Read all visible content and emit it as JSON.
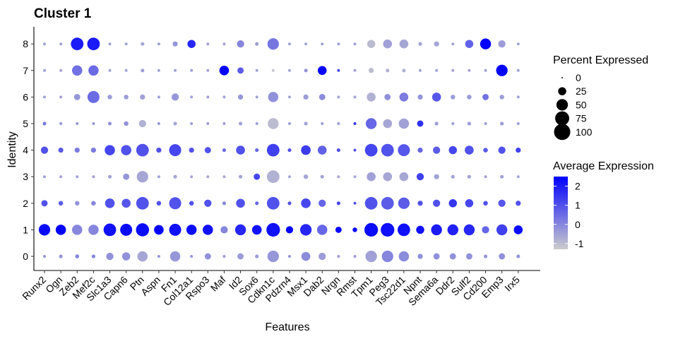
{
  "chart_data": {
    "type": "dotplot",
    "title": "Cluster  1",
    "xlabel": "Features",
    "ylabel": "Identity",
    "features": [
      "Runx2",
      "Ogn",
      "Zeb2",
      "Mef2c",
      "Slc1a3",
      "Capn6",
      "Ptn",
      "Aspn",
      "Fn1",
      "Col12a1",
      "Rspo3",
      "Maf",
      "Id2",
      "Sox6",
      "Cdkn1c",
      "Pdzrn4",
      "Msx1",
      "Dab2",
      "Nrgn",
      "Rmst",
      "Tpm1",
      "Peg3",
      "Tsc22d1",
      "Npnt",
      "Sema6a",
      "Ddr2",
      "Sulf2",
      "Cd200",
      "Emp3",
      "Irx5"
    ],
    "identities": [
      "0",
      "1",
      "2",
      "3",
      "4",
      "5",
      "6",
      "7",
      "8"
    ],
    "percent_expressed": {
      "0": [
        3,
        5,
        6,
        5,
        20,
        25,
        40,
        3,
        40,
        3,
        15,
        3,
        15,
        5,
        50,
        3,
        30,
        20,
        3,
        3,
        50,
        50,
        40,
        10,
        15,
        15,
        15,
        5,
        15,
        5
      ],
      "1": [
        50,
        40,
        40,
        40,
        60,
        55,
        65,
        35,
        55,
        40,
        40,
        20,
        45,
        35,
        70,
        20,
        50,
        40,
        15,
        8,
        70,
        70,
        60,
        25,
        45,
        45,
        45,
        20,
        45,
        30
      ],
      "2": [
        15,
        8,
        8,
        8,
        35,
        30,
        60,
        8,
        55,
        8,
        20,
        5,
        30,
        5,
        60,
        5,
        35,
        20,
        5,
        3,
        60,
        60,
        50,
        10,
        20,
        25,
        25,
        8,
        20,
        10
      ],
      "3": [
        3,
        3,
        3,
        3,
        5,
        15,
        50,
        3,
        5,
        3,
        3,
        3,
        5,
        15,
        60,
        3,
        8,
        5,
        3,
        3,
        30,
        30,
        30,
        20,
        10,
        5,
        5,
        3,
        5,
        3
      ],
      "4": [
        20,
        10,
        10,
        10,
        40,
        40,
        60,
        10,
        55,
        10,
        15,
        5,
        30,
        5,
        60,
        5,
        35,
        30,
        5,
        3,
        60,
        60,
        55,
        10,
        20,
        25,
        30,
        8,
        20,
        10
      ],
      "5": [
        5,
        3,
        3,
        3,
        5,
        8,
        20,
        3,
        5,
        3,
        3,
        3,
        5,
        3,
        45,
        3,
        5,
        3,
        3,
        3,
        45,
        30,
        40,
        15,
        5,
        3,
        5,
        3,
        5,
        3
      ],
      "6": [
        3,
        3,
        15,
        55,
        8,
        8,
        10,
        3,
        20,
        3,
        3,
        3,
        10,
        3,
        40,
        3,
        10,
        15,
        3,
        3,
        30,
        15,
        30,
        10,
        30,
        8,
        8,
        15,
        8,
        3
      ],
      "7": [
        3,
        3,
        40,
        40,
        3,
        3,
        5,
        3,
        3,
        3,
        3,
        35,
        15,
        3,
        3,
        3,
        5,
        30,
        3,
        3,
        10,
        5,
        5,
        3,
        3,
        3,
        3,
        3,
        50,
        3
      ],
      "8": [
        3,
        3,
        60,
        60,
        3,
        3,
        5,
        3,
        10,
        25,
        3,
        3,
        20,
        5,
        50,
        3,
        3,
        3,
        3,
        3,
        25,
        30,
        30,
        5,
        10,
        3,
        25,
        45,
        20,
        3
      ]
    },
    "average_expression": {
      "0": [
        -0.3,
        -0.3,
        0,
        0,
        -0.2,
        -0.2,
        -0.6,
        -0.3,
        -0.3,
        -0.3,
        -0.2,
        -0.4,
        -0.4,
        -0.4,
        -0.3,
        -0.3,
        -0.1,
        -0.4,
        -0.4,
        -0.4,
        -0.5,
        0,
        -0.1,
        -0.2,
        -0.2,
        -0.2,
        -0.2,
        -0.3,
        -0.2,
        -0.3
      ],
      "1": [
        2.3,
        2.5,
        0,
        0,
        2.2,
        2.3,
        2.3,
        2.5,
        2.2,
        2.3,
        2.2,
        0,
        1.8,
        2.2,
        2.2,
        2.4,
        1.8,
        0.6,
        2.3,
        2.3,
        2.3,
        2.2,
        2.2,
        2.2,
        2.0,
        1.9,
        1.8,
        0.6,
        1.3,
        2.3
      ],
      "2": [
        1.0,
        0.8,
        -0.3,
        0,
        1.0,
        0.9,
        1.0,
        1.0,
        1.0,
        1.0,
        1.0,
        0,
        1.0,
        0.6,
        1.0,
        1.0,
        1.2,
        0.6,
        1.2,
        1.0,
        1.0,
        0.8,
        0.8,
        1.0,
        1.0,
        1.5,
        1.2,
        1.0,
        0.9,
        1.0
      ],
      "3": [
        -0.5,
        -0.5,
        -0.5,
        -0.5,
        -0.5,
        -0.3,
        -0.6,
        -0.5,
        -0.6,
        -0.6,
        -0.6,
        -0.6,
        -0.5,
        1.2,
        -0.8,
        -0.6,
        -0.6,
        -0.5,
        -0.6,
        -0.6,
        -0.5,
        -0.6,
        -0.6,
        1.3,
        -0.5,
        -0.5,
        -0.5,
        -0.5,
        -0.5,
        -0.5
      ],
      "4": [
        1.0,
        0.8,
        0.2,
        0.2,
        1.2,
        1.0,
        1.0,
        1.0,
        1.2,
        1.0,
        1.0,
        0.5,
        1.0,
        0.6,
        1.3,
        1.0,
        1.4,
        0.7,
        1.0,
        1.0,
        1.2,
        1.0,
        0.9,
        0.6,
        0.8,
        1.2,
        1.0,
        0.8,
        1.0,
        1.3
      ],
      "5": [
        0.2,
        -0.3,
        -0.3,
        -0.3,
        -0.3,
        -0.2,
        -0.8,
        -0.3,
        -0.6,
        -0.4,
        -0.4,
        -0.4,
        -0.5,
        -0.4,
        -1.0,
        -0.4,
        -0.5,
        -0.4,
        -0.4,
        1.5,
        0.6,
        -0.6,
        -0.5,
        1.6,
        -0.4,
        -0.4,
        -0.4,
        -0.4,
        -0.4,
        -0.4
      ],
      "6": [
        -0.5,
        -0.5,
        -0.3,
        0.5,
        -0.4,
        -0.4,
        -0.5,
        -0.5,
        -0.3,
        -0.5,
        -0.5,
        -0.5,
        -0.3,
        -0.5,
        -0.2,
        -0.5,
        -0.4,
        -0.1,
        -0.5,
        -0.5,
        -0.8,
        -0.2,
        0.2,
        -0.3,
        0.9,
        -0.4,
        -0.4,
        0.4,
        -0.4,
        -0.5
      ],
      "7": [
        -0.5,
        -0.5,
        0.4,
        0.5,
        -0.5,
        -0.5,
        -0.5,
        -0.5,
        -0.5,
        -0.5,
        -0.5,
        2.7,
        0.8,
        -0.5,
        -1.2,
        -0.5,
        -0.3,
        2.6,
        1.2,
        -0.5,
        -1.0,
        -0.8,
        -0.8,
        -0.5,
        -0.5,
        -0.5,
        -0.5,
        -0.5,
        2.6,
        -0.5
      ],
      "8": [
        -0.5,
        -0.5,
        2.0,
        2.0,
        -0.5,
        -0.5,
        -0.6,
        -0.5,
        -0.3,
        1.8,
        -0.5,
        -0.5,
        0,
        -0.4,
        0.3,
        -0.5,
        -0.5,
        -0.5,
        -0.5,
        -0.5,
        -1.0,
        -0.5,
        -0.6,
        -0.5,
        -0.6,
        -0.5,
        0.7,
        2.8,
        -0.4,
        -0.5
      ]
    },
    "legend_size": {
      "title": "Percent Expressed",
      "labels": [
        "0",
        "25",
        "50",
        "75",
        "100"
      ],
      "values": [
        0,
        25,
        50,
        75,
        100
      ]
    },
    "legend_color": {
      "title": "Average Expression",
      "labels": [
        "2",
        "1",
        "0",
        "-1"
      ],
      "values": [
        2,
        1,
        0,
        -1
      ],
      "range": [
        -1.3,
        2.5
      ]
    },
    "colors": {
      "low": "#cccccc",
      "high": "#0000ff"
    },
    "legend_placement": "right",
    "grid": false
  }
}
